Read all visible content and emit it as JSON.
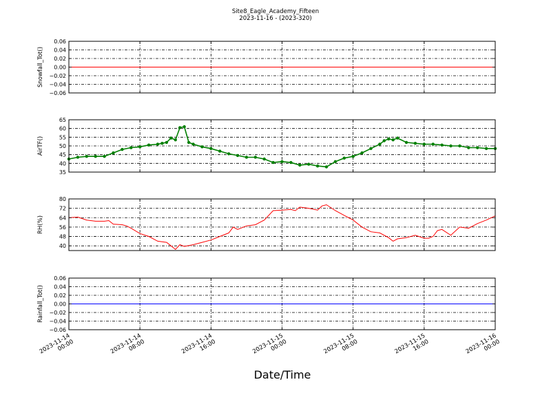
{
  "title_line1": "Site8_Eagle_Academy_Fifteen",
  "title_line2": "2023-11-16 - (2023-320)",
  "xlabel": "Date/Time",
  "x_ticks": [
    {
      "line1": "2023-11-14",
      "line2": "00:00",
      "hour": 0
    },
    {
      "line1": "2023-11-14",
      "line2": "08:00",
      "hour": 8
    },
    {
      "line1": "2023-11-14",
      "line2": "16:00",
      "hour": 16
    },
    {
      "line1": "2023-11-15",
      "line2": "00:00",
      "hour": 24
    },
    {
      "line1": "2023-11-15",
      "line2": "08:00",
      "hour": 32
    },
    {
      "line1": "2023-11-15",
      "line2": "16:00",
      "hour": 40
    },
    {
      "line1": "2023-11-16",
      "line2": "00:00",
      "hour": 48
    }
  ],
  "chart_data": [
    {
      "type": "line",
      "ylabel": "Snowfall_Tot()",
      "ylim": [
        -0.06,
        0.06
      ],
      "yticks": [
        "0.06",
        "0.04",
        "0.02",
        "0.00",
        "−0.02",
        "−0.04",
        "−0.06"
      ],
      "ytick_values": [
        0.06,
        0.04,
        0.02,
        0.0,
        -0.02,
        -0.04,
        -0.06
      ],
      "color": "#ff0000",
      "markers": false,
      "grid": true,
      "x_hours": [
        0,
        48
      ],
      "y": [
        0.0,
        0.0
      ]
    },
    {
      "type": "line",
      "ylabel": "AirTF()",
      "ylim": [
        35,
        65
      ],
      "yticks": [
        "65",
        "60",
        "55",
        "50",
        "45",
        "40",
        "35"
      ],
      "ytick_values": [
        65,
        60,
        55,
        50,
        45,
        40,
        35
      ],
      "color": "#007f00",
      "markers": true,
      "grid": true,
      "x_hours": [
        0,
        1,
        2,
        3,
        4,
        5,
        6,
        7,
        8,
        9,
        10,
        10.5,
        11,
        11.5,
        12,
        12.5,
        13,
        13.5,
        14,
        15,
        16,
        17,
        18,
        19,
        20,
        21,
        22,
        23,
        24,
        25,
        26,
        27,
        28,
        29,
        30,
        31,
        32,
        33,
        34,
        35,
        35.5,
        36,
        36.5,
        37,
        38,
        39,
        40,
        41,
        42,
        43,
        44,
        45,
        46,
        47,
        48
      ],
      "y": [
        42.5,
        43.5,
        44,
        44,
        44,
        46,
        48,
        49,
        49.5,
        50.5,
        51,
        51.5,
        52,
        54.5,
        53.5,
        60.5,
        61,
        52,
        51,
        49.5,
        48.5,
        47,
        45.5,
        44.5,
        43.5,
        43.5,
        42.5,
        40.5,
        41,
        40.5,
        39,
        39.5,
        38.5,
        38,
        41,
        43,
        44,
        46,
        48.5,
        51,
        53,
        54,
        53.5,
        54.5,
        52,
        51.5,
        51,
        51,
        50.5,
        50,
        50,
        49,
        49,
        48.5,
        48.5
      ]
    },
    {
      "type": "line",
      "ylabel": "RH(%)",
      "ylim": [
        36,
        80
      ],
      "yticks": [
        "80",
        "72",
        "64",
        "56",
        "48",
        "40"
      ],
      "ytick_values": [
        80,
        72,
        64,
        56,
        48,
        40
      ],
      "color": "#ff0000",
      "markers": false,
      "grid": true,
      "x_hours": [
        0,
        1,
        2,
        3,
        4,
        4.5,
        5,
        6,
        6.5,
        7,
        8,
        9,
        10,
        11,
        11.5,
        12,
        12.5,
        13,
        14,
        15,
        16,
        17,
        18,
        18.5,
        19,
        20,
        21,
        22,
        23,
        24,
        25,
        25.5,
        26,
        27,
        28,
        28.5,
        29,
        30,
        31,
        32,
        33,
        34,
        35,
        36,
        36.5,
        37,
        38,
        39,
        40,
        40.5,
        41,
        41.5,
        42,
        43,
        44,
        45,
        46,
        47,
        48
      ],
      "y": [
        64,
        64.5,
        62,
        61,
        61,
        61.5,
        58.5,
        58,
        57,
        55,
        50.5,
        48,
        44,
        43,
        40,
        37,
        41,
        39.5,
        41,
        43,
        45,
        48,
        51,
        56,
        54,
        57,
        58,
        62,
        70,
        70.5,
        71,
        70,
        73,
        72,
        70.5,
        74,
        75,
        70,
        66,
        62,
        56,
        52,
        51,
        47,
        44,
        46,
        47,
        49,
        46.5,
        46.5,
        48,
        53,
        54,
        49,
        56,
        55,
        59,
        62,
        65.5
      ]
    },
    {
      "type": "line",
      "ylabel": "Rainfall_Tot()",
      "ylim": [
        -0.06,
        0.06
      ],
      "yticks": [
        "0.06",
        "0.04",
        "0.02",
        "0.00",
        "−0.02",
        "−0.04",
        "−0.06"
      ],
      "ytick_values": [
        0.06,
        0.04,
        0.02,
        0.0,
        -0.02,
        -0.04,
        -0.06
      ],
      "color": "#0000ff",
      "markers": false,
      "grid": true,
      "x_hours": [
        0,
        48
      ],
      "y": [
        0.0,
        0.0
      ]
    }
  ]
}
